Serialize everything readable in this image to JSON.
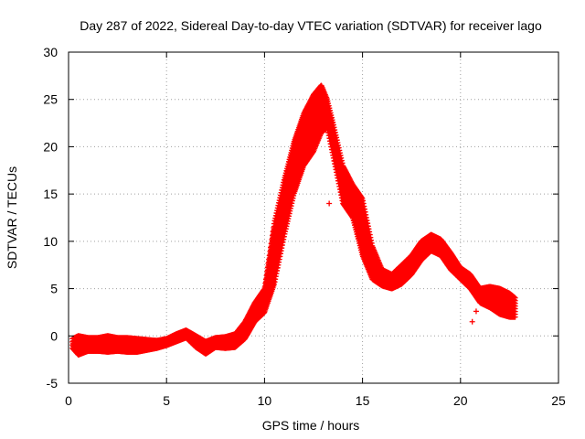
{
  "chart_data": {
    "type": "scatter",
    "title": "Day 287 of 2022, Sidereal Day-to-day VTEC variation (SDTVAR) for receiver lago",
    "xlabel": "GPS time / hours",
    "ylabel": "SDTVAR / TECUs",
    "xlim": [
      0,
      25
    ],
    "ylim": [
      -5,
      30
    ],
    "xticks": [
      0,
      5,
      10,
      15,
      20,
      25
    ],
    "yticks": [
      -5,
      0,
      5,
      10,
      15,
      20,
      25,
      30
    ],
    "grid": true,
    "marker": "+",
    "series_color": "#ff0000",
    "envelope": [
      {
        "x": 0.2,
        "lo": -1.3,
        "hi": -0.3
      },
      {
        "x": 0.5,
        "lo": -2.0,
        "hi": 0.0
      },
      {
        "x": 1.0,
        "lo": -1.6,
        "hi": -0.2
      },
      {
        "x": 1.5,
        "lo": -1.6,
        "hi": -0.2
      },
      {
        "x": 2.0,
        "lo": -1.7,
        "hi": 0.0
      },
      {
        "x": 2.5,
        "lo": -1.6,
        "hi": -0.2
      },
      {
        "x": 3.0,
        "lo": -1.7,
        "hi": -0.2
      },
      {
        "x": 3.5,
        "lo": -1.7,
        "hi": -0.3
      },
      {
        "x": 4.0,
        "lo": -1.5,
        "hi": -0.4
      },
      {
        "x": 4.5,
        "lo": -1.3,
        "hi": -0.5
      },
      {
        "x": 5.0,
        "lo": -1.0,
        "hi": -0.3
      },
      {
        "x": 5.5,
        "lo": -0.6,
        "hi": 0.2
      },
      {
        "x": 6.0,
        "lo": -0.2,
        "hi": 0.6
      },
      {
        "x": 6.5,
        "lo": -1.2,
        "hi": 0.0
      },
      {
        "x": 7.0,
        "lo": -1.9,
        "hi": -0.6
      },
      {
        "x": 7.5,
        "lo": -1.2,
        "hi": -0.2
      },
      {
        "x": 8.0,
        "lo": -1.3,
        "hi": -0.1
      },
      {
        "x": 8.5,
        "lo": -1.2,
        "hi": 0.2
      },
      {
        "x": 9.0,
        "lo": -0.3,
        "hi": 1.5
      },
      {
        "x": 9.5,
        "lo": 1.5,
        "hi": 3.5
      },
      {
        "x": 10.0,
        "lo": 2.5,
        "hi": 5.0
      },
      {
        "x": 10.5,
        "lo": 5.5,
        "hi": 12.0
      },
      {
        "x": 11.0,
        "lo": 10.5,
        "hi": 16.5
      },
      {
        "x": 11.5,
        "lo": 15.0,
        "hi": 20.5
      },
      {
        "x": 12.0,
        "lo": 18.0,
        "hi": 23.5
      },
      {
        "x": 12.5,
        "lo": 19.5,
        "hi": 25.5
      },
      {
        "x": 12.9,
        "lo": 21.5,
        "hi": 26.5
      },
      {
        "x": 13.2,
        "lo": 22.0,
        "hi": 25.0
      },
      {
        "x": 13.5,
        "lo": 19.0,
        "hi": 22.5
      },
      {
        "x": 14.0,
        "lo": 14.0,
        "hi": 18.0
      },
      {
        "x": 14.5,
        "lo": 12.5,
        "hi": 16.0
      },
      {
        "x": 15.0,
        "lo": 8.5,
        "hi": 14.5
      },
      {
        "x": 15.5,
        "lo": 6.0,
        "hi": 9.5
      },
      {
        "x": 16.0,
        "lo": 5.3,
        "hi": 7.0
      },
      {
        "x": 16.5,
        "lo": 5.0,
        "hi": 6.5
      },
      {
        "x": 17.0,
        "lo": 5.5,
        "hi": 7.5
      },
      {
        "x": 17.5,
        "lo": 6.5,
        "hi": 8.5
      },
      {
        "x": 18.0,
        "lo": 8.0,
        "hi": 10.0
      },
      {
        "x": 18.5,
        "lo": 9.0,
        "hi": 10.7
      },
      {
        "x": 19.0,
        "lo": 8.5,
        "hi": 10.2
      },
      {
        "x": 19.5,
        "lo": 7.0,
        "hi": 8.8
      },
      {
        "x": 20.0,
        "lo": 6.0,
        "hi": 7.2
      },
      {
        "x": 20.5,
        "lo": 5.0,
        "hi": 6.5
      },
      {
        "x": 21.0,
        "lo": 3.5,
        "hi": 5.0
      },
      {
        "x": 21.5,
        "lo": 3.0,
        "hi": 5.2
      },
      {
        "x": 22.0,
        "lo": 2.3,
        "hi": 5.0
      },
      {
        "x": 22.5,
        "lo": 2.0,
        "hi": 4.5
      },
      {
        "x": 22.8,
        "lo": 2.0,
        "hi": 4.0
      }
    ],
    "outliers": [
      {
        "x": 13.3,
        "y": 14.0
      },
      {
        "x": 20.6,
        "y": 1.5
      },
      {
        "x": 20.8,
        "y": 2.6
      },
      {
        "x": 12.8,
        "y": 25.3
      },
      {
        "x": 0.4,
        "y": -0.1
      }
    ]
  }
}
